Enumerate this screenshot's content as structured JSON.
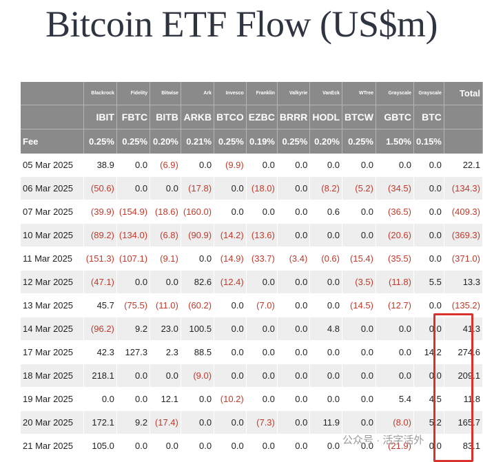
{
  "title": "Bitcoin ETF Flow (US$m)",
  "colors": {
    "header_bg": "#8a8a8a",
    "negative": "#c0392b",
    "highlight": "#d9322c",
    "stripe": "#eeeeee"
  },
  "watermark": "公众号 · 活字活外",
  "chart_data": {
    "type": "table",
    "title": "Bitcoin ETF Flow (US$m)",
    "columns": [
      {
        "issuer": "Blackrock",
        "ticker": "IBIT",
        "fee": "0.25%"
      },
      {
        "issuer": "Fidelity",
        "ticker": "FBTC",
        "fee": "0.25%"
      },
      {
        "issuer": "Bitwise",
        "ticker": "BITB",
        "fee": "0.20%"
      },
      {
        "issuer": "Ark",
        "ticker": "ARKB",
        "fee": "0.21%"
      },
      {
        "issuer": "Invesco",
        "ticker": "BTCO",
        "fee": "0.25%"
      },
      {
        "issuer": "Franklin",
        "ticker": "EZBC",
        "fee": "0.19%"
      },
      {
        "issuer": "Valkyrie",
        "ticker": "BRRR",
        "fee": "0.25%"
      },
      {
        "issuer": "VanEck",
        "ticker": "HODL",
        "fee": "0.20%"
      },
      {
        "issuer": "WTree",
        "ticker": "BTCW",
        "fee": "0.25%"
      },
      {
        "issuer": "Grayscale",
        "ticker": "GBTC",
        "fee": "1.50%"
      },
      {
        "issuer": "Grayscale",
        "ticker": "BTC",
        "fee": "0.15%"
      }
    ],
    "total_label": "Total",
    "fee_label": "Fee",
    "rows": [
      {
        "date": "05 Mar 2025",
        "values": [
          "38.9",
          "0.0",
          "(6.9)",
          "0.0",
          "(9.9)",
          "0.0",
          "0.0",
          "0.0",
          "0.0",
          "0.0",
          "0.0"
        ],
        "total": "22.1"
      },
      {
        "date": "06 Mar 2025",
        "values": [
          "(50.6)",
          "0.0",
          "0.0",
          "(17.8)",
          "0.0",
          "(18.0)",
          "0.0",
          "(8.2)",
          "(5.2)",
          "(34.5)",
          "0.0"
        ],
        "total": "(134.3)"
      },
      {
        "date": "07 Mar 2025",
        "values": [
          "(39.9)",
          "(154.9)",
          "(18.6)",
          "(160.0)",
          "0.0",
          "0.0",
          "0.0",
          "0.6",
          "0.0",
          "(36.5)",
          "0.0"
        ],
        "total": "(409.3)"
      },
      {
        "date": "10 Mar 2025",
        "values": [
          "(89.2)",
          "(134.0)",
          "(6.8)",
          "(90.9)",
          "(14.2)",
          "(13.6)",
          "0.0",
          "0.0",
          "0.0",
          "(20.6)",
          "0.0"
        ],
        "total": "(369.3)"
      },
      {
        "date": "11 Mar 2025",
        "values": [
          "(151.3)",
          "(107.1)",
          "(9.1)",
          "0.0",
          "(14.9)",
          "(33.7)",
          "(3.4)",
          "(0.6)",
          "(15.4)",
          "(35.5)",
          "0.0"
        ],
        "total": "(371.0)"
      },
      {
        "date": "12 Mar 2025",
        "values": [
          "(47.1)",
          "0.0",
          "0.0",
          "82.6",
          "(12.4)",
          "0.0",
          "0.0",
          "0.0",
          "(3.5)",
          "(11.8)",
          "5.5"
        ],
        "total": "13.3"
      },
      {
        "date": "13 Mar 2025",
        "values": [
          "45.7",
          "(75.5)",
          "(11.0)",
          "(60.2)",
          "0.0",
          "(7.0)",
          "0.0",
          "0.0",
          "(14.5)",
          "(12.7)",
          "0.0"
        ],
        "total": "(135.2)"
      },
      {
        "date": "14 Mar 2025",
        "values": [
          "(96.2)",
          "9.2",
          "23.0",
          "100.5",
          "0.0",
          "0.0",
          "0.0",
          "4.8",
          "0.0",
          "0.0",
          "0.0"
        ],
        "total": "41.3"
      },
      {
        "date": "17 Mar 2025",
        "values": [
          "42.3",
          "127.3",
          "2.3",
          "88.5",
          "0.0",
          "0.0",
          "0.0",
          "0.0",
          "0.0",
          "0.0",
          "14.2"
        ],
        "total": "274.6"
      },
      {
        "date": "18 Mar 2025",
        "values": [
          "218.1",
          "0.0",
          "0.0",
          "(9.0)",
          "0.0",
          "0.0",
          "0.0",
          "0.0",
          "0.0",
          "0.0",
          "0.0"
        ],
        "total": "209.1"
      },
      {
        "date": "19 Mar 2025",
        "values": [
          "0.0",
          "0.0",
          "12.1",
          "0.0",
          "(10.2)",
          "0.0",
          "0.0",
          "0.0",
          "0.0",
          "5.4",
          "4.5"
        ],
        "total": "11.8"
      },
      {
        "date": "20 Mar 2025",
        "values": [
          "172.1",
          "9.2",
          "(17.4)",
          "0.0",
          "0.0",
          "(7.3)",
          "0.0",
          "11.9",
          "0.0",
          "(8.0)",
          "5.2"
        ],
        "total": "165.7"
      },
      {
        "date": "21 Mar 2025",
        "values": [
          "105.0",
          "0.0",
          "0.0",
          "0.0",
          "0.0",
          "0.0",
          "0.0",
          "0.0",
          "0.0",
          "(21.9)",
          "0.0"
        ],
        "total": "83.1"
      }
    ]
  }
}
